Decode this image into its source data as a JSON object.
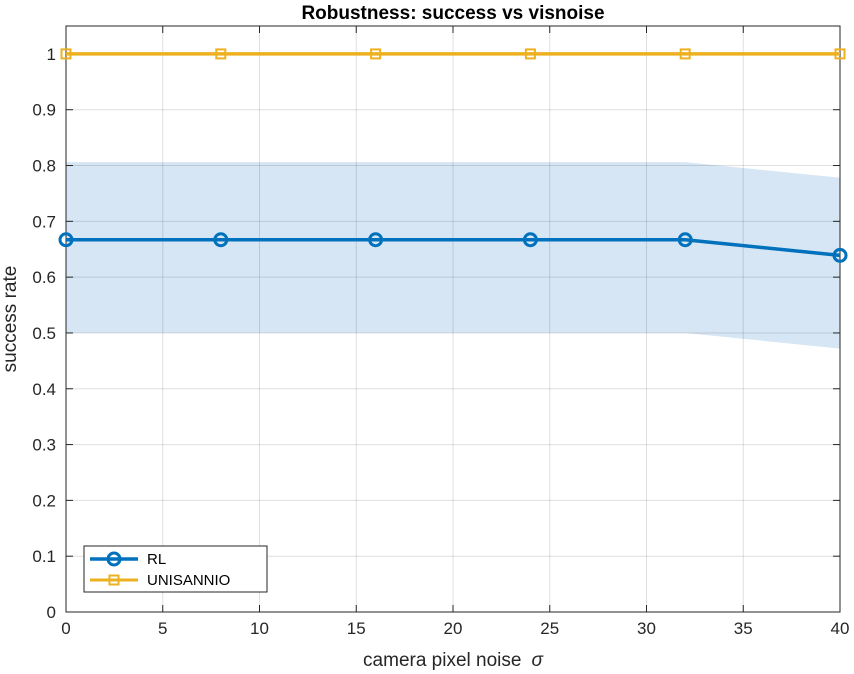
{
  "chart_data": {
    "type": "line",
    "title": "Robustness: success vs visnoise",
    "xlabel": "camera  pixel  noise",
    "xlabel_symbol": "σ",
    "ylabel": "success rate",
    "xlim": [
      0,
      40
    ],
    "ylim": [
      0,
      1.05
    ],
    "xticks": [
      0,
      5,
      10,
      15,
      20,
      25,
      30,
      35,
      40
    ],
    "xtick_labels": [
      "0",
      "5",
      "10",
      "15",
      "20",
      "25",
      "30",
      "35",
      "40"
    ],
    "yticks": [
      0,
      0.1,
      0.2,
      0.3,
      0.4,
      0.5,
      0.6,
      0.7,
      0.8,
      0.9,
      1.0
    ],
    "ytick_labels": [
      "0",
      "0.1",
      "0.2",
      "0.3",
      "0.4",
      "0.5",
      "0.6",
      "0.7",
      "0.8",
      "0.9",
      "1"
    ],
    "grid": true,
    "legend_position": "bottom-left",
    "x": [
      0,
      8,
      16,
      24,
      32,
      40
    ],
    "series": [
      {
        "name": "RL",
        "color": "#0072BD",
        "marker": "circle",
        "values": [
          0.667,
          0.667,
          0.667,
          0.667,
          0.667,
          0.639
        ],
        "band_lower": [
          0.5,
          0.5,
          0.5,
          0.5,
          0.5,
          0.472
        ],
        "band_upper": [
          0.806,
          0.806,
          0.806,
          0.806,
          0.806,
          0.778
        ],
        "band_color": "#D6E6F4"
      },
      {
        "name": "UNISANNIO",
        "color": "#EDB120",
        "marker": "square",
        "values": [
          1,
          1,
          1,
          1,
          1,
          1
        ]
      }
    ]
  }
}
